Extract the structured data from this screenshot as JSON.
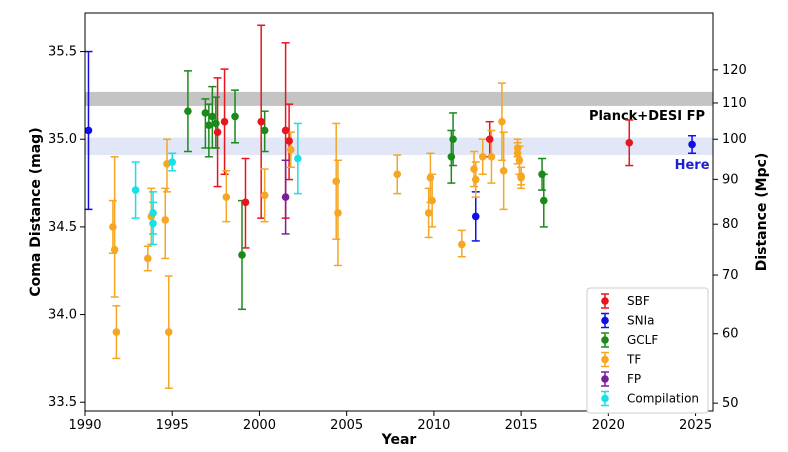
{
  "chart_data": {
    "type": "scatter",
    "xlabel": "Year",
    "ylabel": "Coma Distance (mag)",
    "ylabel_right": "Distance (Mpc)",
    "xlim": [
      1990,
      2026
    ],
    "ylim": [
      33.45,
      35.72
    ],
    "x_ticks": [
      1990,
      1995,
      2000,
      2005,
      2010,
      2015,
      2020,
      2025
    ],
    "y_ticks": [
      33.5,
      34.0,
      34.5,
      35.0,
      35.5
    ],
    "y_tick_labels": [
      "33.5",
      "34.0",
      "34.5",
      "35.0",
      "35.5"
    ],
    "right_ticks": [
      50,
      60,
      70,
      80,
      90,
      100,
      110,
      120
    ],
    "grid": false,
    "legend_position": "lower-right",
    "bands": [
      {
        "label": "Planck+DESI FP",
        "y0": 35.19,
        "y1": 35.27,
        "color": "#b0b0b0"
      },
      {
        "label": "",
        "y0": 34.91,
        "y1": 35.01,
        "color": "#c8d4f0"
      }
    ],
    "annotation": {
      "text": "Here",
      "x": 2024.8,
      "y": 34.86,
      "color": "#1f1fd0"
    },
    "series": [
      {
        "name": "SBF",
        "color": "#e8141e",
        "points": [
          {
            "x": 1997.6,
            "y": 35.04,
            "lo": 34.73,
            "hi": 35.35
          },
          {
            "x": 1998.0,
            "y": 35.1,
            "lo": 34.8,
            "hi": 35.4
          },
          {
            "x": 1999.2,
            "y": 34.64,
            "lo": 34.38,
            "hi": 34.89
          },
          {
            "x": 2000.1,
            "y": 35.1,
            "lo": 34.55,
            "hi": 35.65
          },
          {
            "x": 2001.5,
            "y": 35.05,
            "lo": 34.55,
            "hi": 35.55
          },
          {
            "x": 2001.7,
            "y": 34.99,
            "lo": 34.77,
            "hi": 35.2
          },
          {
            "x": 2013.2,
            "y": 35.0,
            "lo": 34.9,
            "hi": 35.1
          },
          {
            "x": 2021.2,
            "y": 34.98,
            "lo": 34.85,
            "hi": 35.11
          }
        ]
      },
      {
        "name": "SNIa",
        "color": "#1010e0",
        "points": [
          {
            "x": 1990.2,
            "y": 35.05,
            "lo": 34.6,
            "hi": 35.5
          },
          {
            "x": 2012.4,
            "y": 34.56,
            "lo": 34.42,
            "hi": 34.7
          },
          {
            "x": 2024.8,
            "y": 34.97,
            "lo": 34.92,
            "hi": 35.02
          }
        ]
      },
      {
        "name": "GCLF",
        "color": "#1a8a1a",
        "points": [
          {
            "x": 1995.9,
            "y": 35.16,
            "lo": 34.93,
            "hi": 35.39
          },
          {
            "x": 1996.9,
            "y": 35.15,
            "lo": 34.95,
            "hi": 35.23
          },
          {
            "x": 1997.1,
            "y": 35.08,
            "lo": 34.9,
            "hi": 35.2
          },
          {
            "x": 1997.3,
            "y": 35.13,
            "lo": 34.95,
            "hi": 35.3
          },
          {
            "x": 1997.5,
            "y": 35.09,
            "lo": 34.95,
            "hi": 35.24
          },
          {
            "x": 1998.6,
            "y": 35.13,
            "lo": 34.98,
            "hi": 35.28
          },
          {
            "x": 1999.0,
            "y": 34.34,
            "lo": 34.03,
            "hi": 34.65
          },
          {
            "x": 2000.3,
            "y": 35.05,
            "lo": 34.93,
            "hi": 35.16
          },
          {
            "x": 2011.0,
            "y": 34.9,
            "lo": 34.75,
            "hi": 35.05
          },
          {
            "x": 2011.1,
            "y": 35.0,
            "lo": 34.85,
            "hi": 35.15
          },
          {
            "x": 2016.2,
            "y": 34.8,
            "lo": 34.71,
            "hi": 34.89
          },
          {
            "x": 2016.3,
            "y": 34.65,
            "lo": 34.5,
            "hi": 34.8
          }
        ]
      },
      {
        "name": "TF",
        "color": "#f5a623",
        "points": [
          {
            "x": 1991.6,
            "y": 34.5,
            "lo": 34.35,
            "hi": 34.65
          },
          {
            "x": 1991.7,
            "y": 34.37,
            "lo": 34.1,
            "hi": 34.9
          },
          {
            "x": 1991.8,
            "y": 33.9,
            "lo": 33.75,
            "hi": 34.05
          },
          {
            "x": 1993.6,
            "y": 34.32,
            "lo": 34.25,
            "hi": 34.39
          },
          {
            "x": 1993.8,
            "y": 34.56,
            "lo": 34.4,
            "hi": 34.72
          },
          {
            "x": 1994.6,
            "y": 34.54,
            "lo": 34.32,
            "hi": 34.72
          },
          {
            "x": 1994.7,
            "y": 34.86,
            "lo": 34.7,
            "hi": 35.0
          },
          {
            "x": 1994.8,
            "y": 33.9,
            "lo": 33.58,
            "hi": 34.22
          },
          {
            "x": 1998.1,
            "y": 34.67,
            "lo": 34.53,
            "hi": 34.82
          },
          {
            "x": 2000.3,
            "y": 34.68,
            "lo": 34.53,
            "hi": 34.83
          },
          {
            "x": 2001.8,
            "y": 34.94,
            "lo": 34.84,
            "hi": 35.04
          },
          {
            "x": 2004.4,
            "y": 34.76,
            "lo": 34.43,
            "hi": 35.09
          },
          {
            "x": 2004.5,
            "y": 34.58,
            "lo": 34.28,
            "hi": 34.88
          },
          {
            "x": 2007.9,
            "y": 34.8,
            "lo": 34.69,
            "hi": 34.91
          },
          {
            "x": 2009.8,
            "y": 34.78,
            "lo": 34.64,
            "hi": 34.92
          },
          {
            "x": 2009.9,
            "y": 34.65,
            "lo": 34.5,
            "hi": 34.8
          },
          {
            "x": 2009.7,
            "y": 34.58,
            "lo": 34.44,
            "hi": 34.72
          },
          {
            "x": 2011.6,
            "y": 34.4,
            "lo": 34.33,
            "hi": 34.48
          },
          {
            "x": 2012.3,
            "y": 34.83,
            "lo": 34.73,
            "hi": 34.93
          },
          {
            "x": 2012.4,
            "y": 34.77,
            "lo": 34.67,
            "hi": 34.87
          },
          {
            "x": 2012.8,
            "y": 34.9,
            "lo": 34.8,
            "hi": 35.0
          },
          {
            "x": 2013.3,
            "y": 34.9,
            "lo": 34.75,
            "hi": 35.05
          },
          {
            "x": 2013.9,
            "y": 35.1,
            "lo": 34.88,
            "hi": 35.32
          },
          {
            "x": 2014.0,
            "y": 34.82,
            "lo": 34.6,
            "hi": 35.04
          },
          {
            "x": 2014.8,
            "y": 34.95,
            "lo": 34.9,
            "hi": 35.0
          },
          {
            "x": 2014.9,
            "y": 34.88,
            "lo": 34.8,
            "hi": 34.96
          },
          {
            "x": 2015.0,
            "y": 34.78,
            "lo": 34.72,
            "hi": 34.84
          },
          {
            "x": 2014.8,
            "y": 34.92,
            "lo": 34.86,
            "hi": 34.98
          },
          {
            "x": 2015.0,
            "y": 34.79,
            "lo": 34.74,
            "hi": 34.84
          }
        ]
      },
      {
        "name": "FP",
        "color": "#7a1f9a",
        "points": [
          {
            "x": 2001.5,
            "y": 34.67,
            "lo": 34.46,
            "hi": 34.88
          }
        ]
      },
      {
        "name": "Compilation",
        "color": "#19e0e6",
        "points": [
          {
            "x": 1992.9,
            "y": 34.71,
            "lo": 34.55,
            "hi": 34.87
          },
          {
            "x": 1993.9,
            "y": 34.58,
            "lo": 34.46,
            "hi": 34.7
          },
          {
            "x": 1993.9,
            "y": 34.52,
            "lo": 34.4,
            "hi": 34.64
          },
          {
            "x": 1995.0,
            "y": 34.87,
            "lo": 34.82,
            "hi": 34.92
          },
          {
            "x": 2002.2,
            "y": 34.89,
            "lo": 34.69,
            "hi": 35.09
          }
        ]
      }
    ]
  }
}
